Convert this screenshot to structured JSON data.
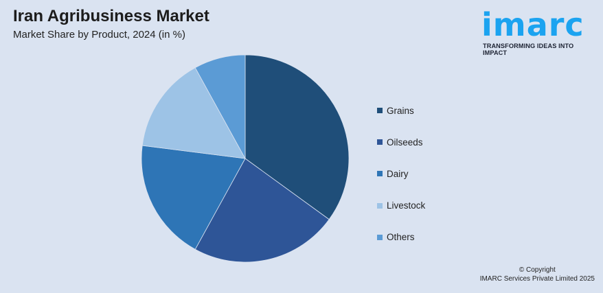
{
  "header": {
    "title": "Iran Agribusiness Market",
    "subtitle": "Market Share by Product, 2024 (in %)"
  },
  "logo": {
    "word": "imarc",
    "tagline": "TRANSFORMING IDEAS INTO IMPACT",
    "color": "#1ba3f0"
  },
  "chart_data": {
    "type": "pie",
    "title": "Iran Agribusiness Market",
    "subtitle": "Market Share by Product, 2024 (in %)",
    "legend_position": "right",
    "start_angle": "top, clockwise",
    "categories": [
      "Grains",
      "Oilseeds",
      "Dairy",
      "Livestock",
      "Others"
    ],
    "values": [
      35,
      23,
      19,
      15,
      8
    ],
    "colors": [
      "#1f4e79",
      "#2e5597",
      "#2e75b6",
      "#9dc3e6",
      "#5b9bd5"
    ]
  },
  "footer": {
    "copyright_line1": "© Copyright",
    "copyright_line2": "IMARC Services Private Limited 2025"
  }
}
